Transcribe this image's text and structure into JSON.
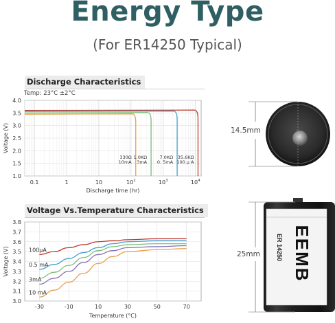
{
  "header": {
    "title": "Energy Type",
    "subtitle": "(For ER14250 Typical)"
  },
  "chart_data": [
    {
      "type": "line",
      "title": "Discharge Characteristics",
      "note": "Temp: 23°C ±2°C",
      "xlabel": "Discharge time (hr)",
      "ylabel": "Voltage (V)",
      "xscale": "log",
      "xlim": [
        0.05,
        15000
      ],
      "ylim": [
        1.0,
        4.0
      ],
      "yticks": [
        "1.0",
        "1.5",
        "2.0",
        "2.5",
        "3.0",
        "3.5",
        "4.0"
      ],
      "xticks": [
        {
          "v": 0.1,
          "base": "0.1",
          "exp": ""
        },
        {
          "v": 1,
          "base": "1",
          "exp": ""
        },
        {
          "v": 10,
          "base": "10",
          "exp": ""
        },
        {
          "v": 100,
          "base": "10",
          "exp": "2"
        },
        {
          "v": 1000,
          "base": "10",
          "exp": "3"
        },
        {
          "v": 10000,
          "base": "10",
          "exp": "4"
        }
      ],
      "grid": true,
      "series": [
        {
          "load": "330Ω",
          "current": "10mA",
          "color": "#e7a04a",
          "plateau": 3.45,
          "end_hr": 140
        },
        {
          "load": "1.0KΩ",
          "current": "3mA",
          "color": "#7cc07a",
          "plateau": 3.5,
          "end_hr": 420
        },
        {
          "load": "7.0KΩ",
          "current": "0. 5mA",
          "color": "#3f9fd2",
          "plateau": 3.56,
          "end_hr": 2700
        },
        {
          "load": "35.6KΩ",
          "current": "100 μ A",
          "color": "#c0392b",
          "plateau": 3.6,
          "end_hr": 12000
        }
      ]
    },
    {
      "type": "line",
      "title": "Voltage Vs.Temperature Characteristics",
      "xlabel": "Temperature (°C)",
      "ylabel": "Voltage (V)",
      "xlim": [
        -40,
        80
      ],
      "ylim": [
        3.0,
        3.8
      ],
      "xticks": [
        "-30",
        "-10",
        "10",
        "30",
        "50",
        "70"
      ],
      "yticks": [
        "3.0",
        "3.1",
        "3.2",
        "3.3",
        "3.4",
        "3.5",
        "3.6",
        "3.7",
        "3.8"
      ],
      "grid": true,
      "series": [
        {
          "name": "100μA",
          "color": "#c0392b",
          "points": [
            [
              -30,
              3.47
            ],
            [
              -20,
              3.5
            ],
            [
              -10,
              3.54
            ],
            [
              0,
              3.57
            ],
            [
              10,
              3.6
            ],
            [
              20,
              3.61
            ],
            [
              30,
              3.62
            ],
            [
              50,
              3.63
            ],
            [
              70,
              3.63
            ]
          ]
        },
        {
          "name": "0.5 mA",
          "color": "#3f9fd2",
          "points": [
            [
              -30,
              3.32
            ],
            [
              -20,
              3.37
            ],
            [
              -10,
              3.43
            ],
            [
              0,
              3.49
            ],
            [
              10,
              3.54
            ],
            [
              20,
              3.58
            ],
            [
              30,
              3.6
            ],
            [
              50,
              3.61
            ],
            [
              70,
              3.61
            ]
          ]
        },
        {
          "name": "",
          "color": "#7cc07a",
          "points": [
            [
              -30,
              3.23
            ],
            [
              -20,
              3.29
            ],
            [
              -10,
              3.36
            ],
            [
              0,
              3.44
            ],
            [
              10,
              3.51
            ],
            [
              20,
              3.55
            ],
            [
              30,
              3.57
            ],
            [
              50,
              3.58
            ],
            [
              70,
              3.58
            ]
          ]
        },
        {
          "name": "3mA",
          "color": "#8b6fb5",
          "points": [
            [
              -30,
              3.17
            ],
            [
              -20,
              3.23
            ],
            [
              -10,
              3.3
            ],
            [
              0,
              3.39
            ],
            [
              10,
              3.47
            ],
            [
              20,
              3.51
            ],
            [
              30,
              3.54
            ],
            [
              50,
              3.55
            ],
            [
              70,
              3.56
            ]
          ]
        },
        {
          "name": "10 mA",
          "color": "#e7a04a",
          "points": [
            [
              -30,
              3.04
            ],
            [
              -20,
              3.11
            ],
            [
              -10,
              3.19
            ],
            [
              0,
              3.28
            ],
            [
              10,
              3.38
            ],
            [
              20,
              3.45
            ],
            [
              30,
              3.5
            ],
            [
              50,
              3.52
            ],
            [
              70,
              3.53
            ]
          ]
        }
      ]
    }
  ],
  "battery": {
    "top_dimension": "14.5mm",
    "side_dimension": "25mm",
    "brand": "EEMB",
    "model": "ER 14250"
  }
}
